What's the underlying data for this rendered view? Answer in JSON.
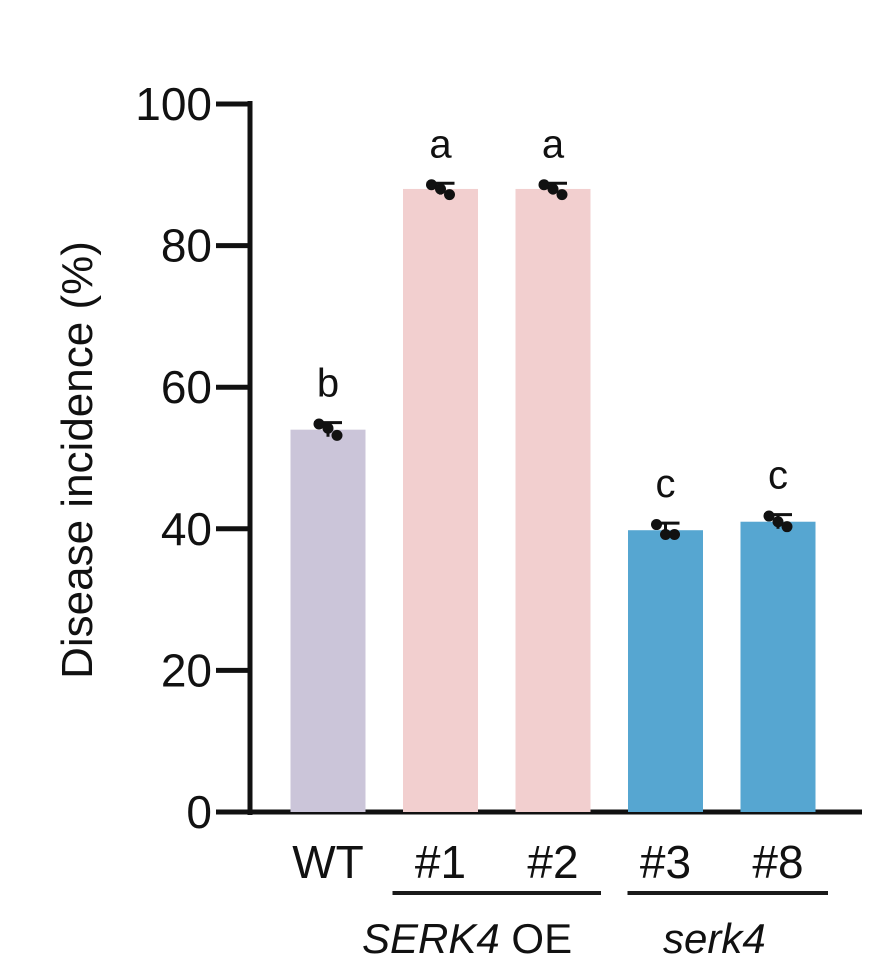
{
  "chart_data": {
    "type": "bar",
    "title": "",
    "ylabel": "Disease incidence (%)",
    "xlabel": "",
    "ylim": [
      0,
      100
    ],
    "yticks": [
      "0",
      "20",
      "40",
      "60",
      "80",
      "100"
    ],
    "categories": [
      "WT",
      "#1",
      "#2",
      "#3",
      "#8"
    ],
    "values": [
      54,
      88,
      88,
      39.8,
      41
    ],
    "errors": [
      1,
      0.8,
      0.8,
      1,
      1
    ],
    "points": [
      [
        54.8,
        54.2,
        53.2
      ],
      [
        88.6,
        88,
        87.2
      ],
      [
        88.6,
        88,
        87.2
      ],
      [
        40.6,
        39.2,
        39.2
      ],
      [
        41.8,
        41,
        40.3
      ]
    ],
    "significance": [
      "b",
      "a",
      "a",
      "c",
      "c"
    ],
    "colors": [
      "#cbc5d9",
      "#f2cfcf",
      "#f2cfcf",
      "#56a6d1",
      "#56a6d1"
    ],
    "groups": [
      {
        "label": "SERK4 OE",
        "categories": [
          1,
          2
        ],
        "italic_part": "SERK4",
        "plain_part": " OE"
      },
      {
        "label": "serk4",
        "categories": [
          3,
          4
        ],
        "italic_part": "serk4",
        "plain_part": ""
      }
    ]
  }
}
